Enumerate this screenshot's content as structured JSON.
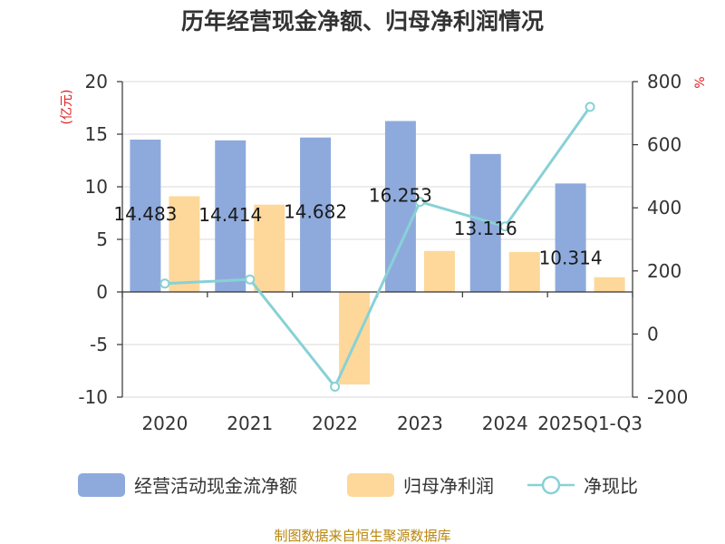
{
  "chart_data": {
    "type": "bar",
    "title": "历年经营现金净额、归母净利润情况",
    "categories": [
      "2020",
      "2021",
      "2022",
      "2023",
      "2024",
      "2025Q1-Q3"
    ],
    "series": [
      {
        "name": "经营活动现金流净额",
        "type": "bar",
        "axis": "left",
        "color": "#8eaadc",
        "values": [
          14.483,
          14.414,
          14.682,
          16.253,
          13.116,
          10.314
        ],
        "labels": [
          "14.483",
          "14.414",
          "14.682",
          "16.253",
          "13.116",
          "10.314"
        ]
      },
      {
        "name": "归母净利润",
        "type": "bar",
        "axis": "left",
        "color": "#fdd89a",
        "values": [
          9.1,
          8.3,
          -8.8,
          3.9,
          3.8,
          1.4
        ]
      },
      {
        "name": "净现比",
        "type": "line",
        "axis": "right",
        "color": "#88d1d6",
        "values": [
          160,
          173,
          -167,
          419,
          341,
          720
        ]
      }
    ],
    "y_left": {
      "unit": "(亿元)",
      "min": -10,
      "max": 20,
      "ticks": [
        "-10",
        "-5",
        "0",
        "5",
        "10",
        "15",
        "20"
      ]
    },
    "y_right": {
      "unit": "%",
      "min": -200,
      "max": 800,
      "ticks": [
        "-200",
        "0",
        "200",
        "400",
        "600",
        "800"
      ]
    },
    "grid": true,
    "legend": "bottom"
  },
  "source": "制图数据来自恒生聚源数据库"
}
